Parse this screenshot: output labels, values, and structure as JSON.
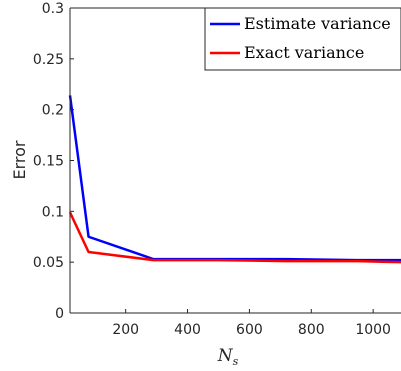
{
  "chart_data": {
    "type": "line",
    "title": "",
    "ylabel": "Error",
    "xlabel": {
      "main": "N",
      "sub": "s"
    },
    "xlim": [
      20,
      1090
    ],
    "ylim": [
      0,
      0.3
    ],
    "xticks": [
      200,
      400,
      600,
      800,
      1000
    ],
    "xtick_labels": [
      "200",
      "400",
      "600",
      "800",
      "1000"
    ],
    "yticks": [
      0,
      0.05,
      0.1,
      0.15,
      0.2,
      0.25,
      0.3
    ],
    "ytick_labels": [
      "0",
      "0.05",
      "0.1",
      "0.15",
      "0.2",
      "0.25",
      "0.3"
    ],
    "grid": false,
    "legend_position": "top-right",
    "series": [
      {
        "name": "Estimate variance",
        "color": "#0000ff",
        "x": [
          20,
          80,
          290,
          500,
          720,
          950,
          1090
        ],
        "y": [
          0.214,
          0.075,
          0.053,
          0.053,
          0.053,
          0.052,
          0.052
        ]
      },
      {
        "name": "Exact variance",
        "color": "#ff0000",
        "x": [
          20,
          80,
          290,
          500,
          720,
          950,
          1090
        ],
        "y": [
          0.099,
          0.06,
          0.052,
          0.052,
          0.051,
          0.051,
          0.05
        ]
      }
    ]
  }
}
